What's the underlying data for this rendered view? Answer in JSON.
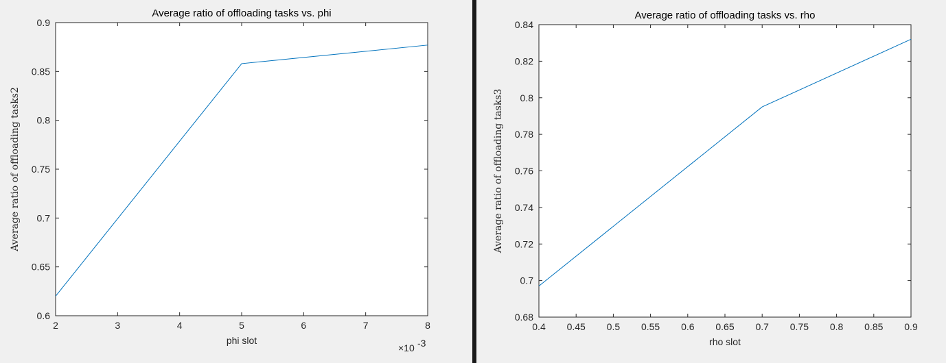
{
  "colors": {
    "line": "#0072bd",
    "axis": "#262626",
    "figure_bg": "#f0f0f0",
    "plot_bg": "#ffffff"
  },
  "chart_data": [
    {
      "type": "line",
      "title": "Average ratio of offloading tasks vs. phi",
      "xlabel": "phi slot",
      "ylabel": "Average ratio of offloading tasks2",
      "x_exponent_label": "×10",
      "x_exponent_power": "-3",
      "xlim": [
        0.002,
        0.008
      ],
      "ylim": [
        0.6,
        0.9
      ],
      "xticks": [
        0.002,
        0.003,
        0.004,
        0.005,
        0.006,
        0.007,
        0.008
      ],
      "xtick_labels": [
        "2",
        "3",
        "4",
        "5",
        "6",
        "7",
        "8"
      ],
      "yticks": [
        0.6,
        0.65,
        0.7,
        0.75,
        0.8,
        0.85,
        0.9
      ],
      "ytick_labels": [
        "0.6",
        "0.65",
        "0.7",
        "0.75",
        "0.8",
        "0.85",
        "0.9"
      ],
      "grid": false,
      "series": [
        {
          "x": [
            0.002,
            0.005,
            0.008
          ],
          "y": [
            0.62,
            0.858,
            0.877
          ]
        }
      ]
    },
    {
      "type": "line",
      "title": "Average ratio of offloading tasks vs. rho",
      "xlabel": "rho slot",
      "ylabel": "Average ratio of offloading tasks3",
      "xlim": [
        0.4,
        0.9
      ],
      "ylim": [
        0.68,
        0.84
      ],
      "xticks": [
        0.4,
        0.45,
        0.5,
        0.55,
        0.6,
        0.65,
        0.7,
        0.75,
        0.8,
        0.85,
        0.9
      ],
      "xtick_labels": [
        "0.4",
        "0.45",
        "0.5",
        "0.55",
        "0.6",
        "0.65",
        "0.7",
        "0.75",
        "0.8",
        "0.85",
        "0.9"
      ],
      "yticks": [
        0.68,
        0.7,
        0.72,
        0.74,
        0.76,
        0.78,
        0.8,
        0.82,
        0.84
      ],
      "ytick_labels": [
        "0.68",
        "0.7",
        "0.72",
        "0.74",
        "0.76",
        "0.78",
        "0.8",
        "0.82",
        "0.84"
      ],
      "grid": false,
      "series": [
        {
          "x": [
            0.4,
            0.7,
            0.9
          ],
          "y": [
            0.697,
            0.795,
            0.832
          ]
        }
      ]
    }
  ]
}
